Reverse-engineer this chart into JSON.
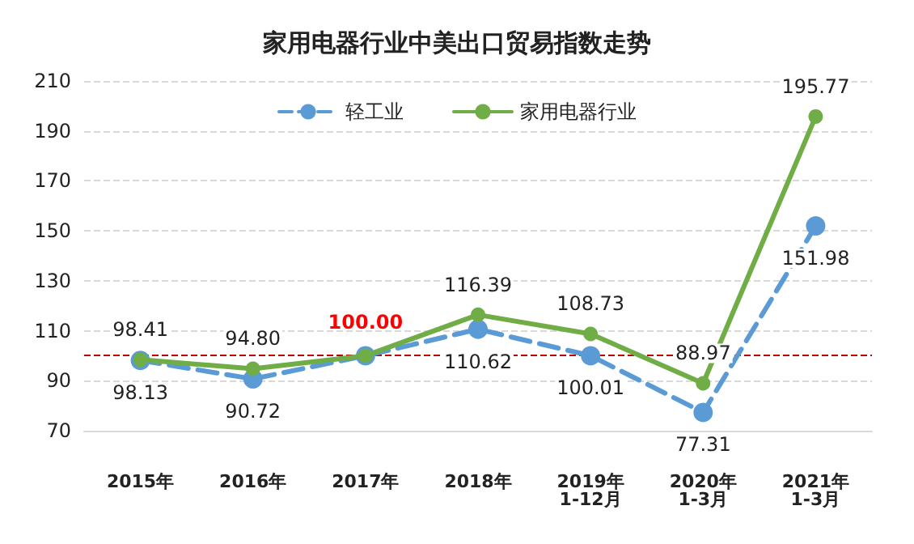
{
  "chart_data": {
    "type": "line",
    "title": "家用电器行业中美出口贸易指数走势",
    "categories": [
      "2015年",
      "2016年",
      "2017年",
      "2018年",
      "2019年\n1-12月",
      "2020年\n1-3月",
      "2021年\n1-3月"
    ],
    "series": [
      {
        "name": "轻工业",
        "color": "#5b9bd5",
        "line_style": "dashed",
        "values": [
          98.13,
          90.72,
          100.0,
          110.62,
          100.01,
          77.31,
          151.98
        ],
        "value_labels": [
          "98.13",
          "90.72",
          null,
          "110.62",
          "100.01",
          "77.31",
          "151.98"
        ]
      },
      {
        "name": "家用电器行业",
        "color": "#70ad47",
        "line_style": "solid",
        "values": [
          98.41,
          94.8,
          100.0,
          116.39,
          108.73,
          88.97,
          195.77
        ],
        "value_labels": [
          "98.41",
          "94.80",
          null,
          "116.39",
          "108.73",
          "88.97",
          "195.77"
        ]
      }
    ],
    "annotations": [
      {
        "text": "100.00",
        "x": "2017年",
        "y": 100
      }
    ],
    "ylim": [
      70,
      210
    ],
    "yticks": [
      70,
      90,
      110,
      130,
      150,
      170,
      190,
      210
    ],
    "ref_lines": [
      {
        "axis": "y",
        "value": 100,
        "color": "#c00000",
        "line_style": "dashed"
      }
    ],
    "grid": "y",
    "legend": "top",
    "marker": "circle"
  }
}
